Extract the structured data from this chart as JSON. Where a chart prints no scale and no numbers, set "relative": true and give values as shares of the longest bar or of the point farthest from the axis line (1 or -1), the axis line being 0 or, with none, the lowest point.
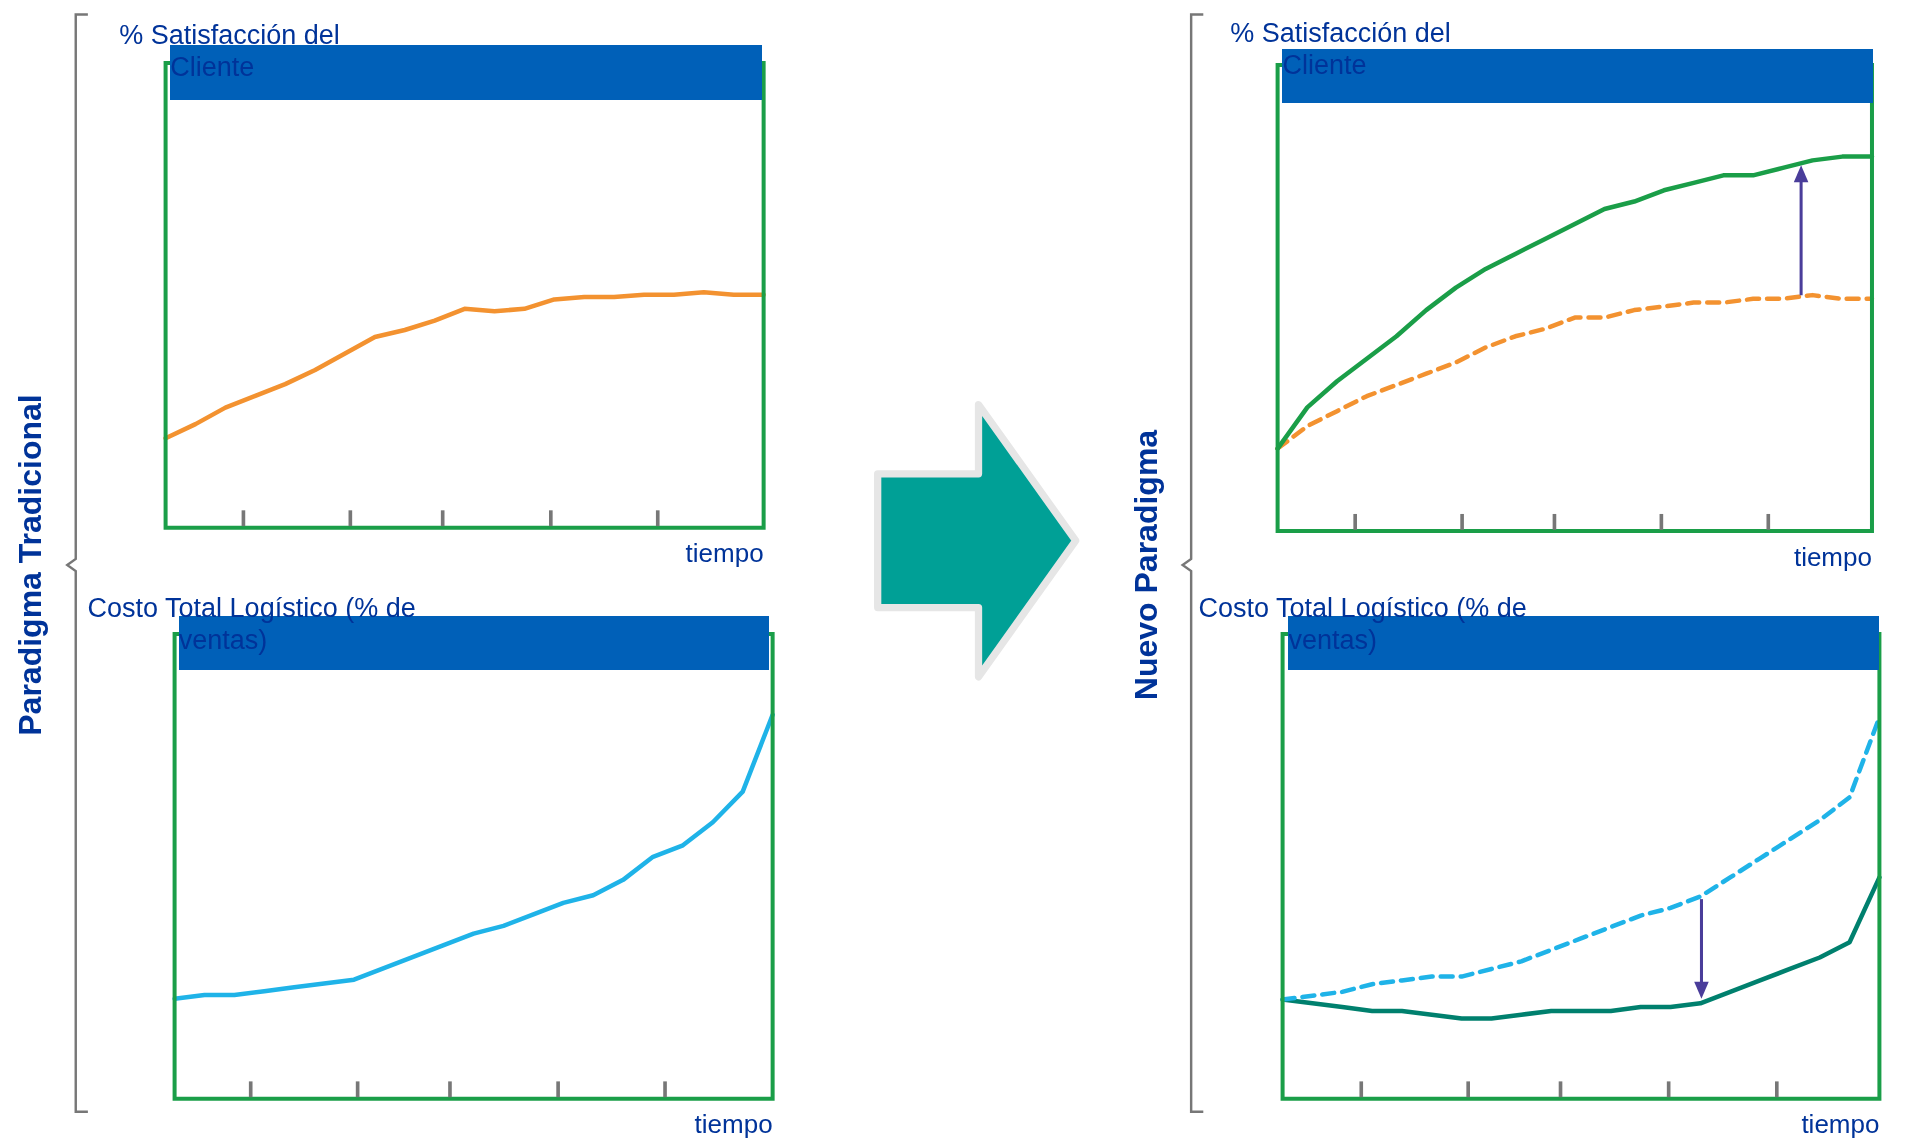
{
  "chart_data": [
    {
      "type": "line",
      "title": "% Satisfacción del Cliente",
      "xlabel": "tiempo",
      "annotations": [
        "Paradigma Tradicional"
      ],
      "relative": true,
      "marker": "none",
      "categories": [
        null,
        null,
        null,
        null,
        null,
        null,
        null,
        null,
        null,
        null,
        null,
        null,
        null,
        null,
        null,
        null,
        null,
        null,
        null,
        null,
        null
      ],
      "series": [
        {
          "color": "#f39230",
          "line_style": "solid",
          "values": [
            0.38,
            0.44,
            0.51,
            0.56,
            0.61,
            0.67,
            0.74,
            0.81,
            0.84,
            0.88,
            0.93,
            0.92,
            0.93,
            0.97,
            0.98,
            0.98,
            0.99,
            0.99,
            1,
            0.99,
            0.99
          ]
        }
      ]
    },
    {
      "type": "line",
      "title": "% Satisfacción del Cliente",
      "xlabel": "tiempo",
      "annotations": [
        "Nuevo Paradigma"
      ],
      "relative": true,
      "marker": "none",
      "categories": [
        null,
        null,
        null,
        null,
        null,
        null,
        null,
        null,
        null,
        null,
        null,
        null,
        null,
        null,
        null,
        null,
        null,
        null,
        null,
        null,
        null
      ],
      "series": [
        {
          "color": "#1a9e48",
          "line_style": "solid",
          "values": [
            0.22,
            0.33,
            0.4,
            0.46,
            0.52,
            0.59,
            0.65,
            0.7,
            0.74,
            0.78,
            0.82,
            0.86,
            0.88,
            0.91,
            0.93,
            0.95,
            0.95,
            0.97,
            0.99,
            1,
            1
          ]
        },
        {
          "color": "#f39230",
          "line_style": "dashed",
          "values": [
            0.22,
            0.28,
            0.32,
            0.36,
            0.39,
            0.42,
            0.45,
            0.49,
            0.52,
            0.54,
            0.57,
            0.57,
            0.59,
            0.6,
            0.61,
            0.61,
            0.62,
            0.62,
            0.63,
            0.62,
            0.62
          ]
        }
      ]
    },
    {
      "type": "line",
      "title": "Costo Total Logístico (% de ventas)",
      "xlabel": "tiempo",
      "relative": true,
      "marker": "none",
      "categories": [
        null,
        null,
        null,
        null,
        null,
        null,
        null,
        null,
        null,
        null,
        null,
        null,
        null,
        null,
        null,
        null,
        null,
        null,
        null,
        null,
        null
      ],
      "series": [
        {
          "color": "#1fb3e8",
          "line_style": "solid",
          "values": [
            0.26,
            0.27,
            0.27,
            0.28,
            0.29,
            0.3,
            0.31,
            0.34,
            0.37,
            0.4,
            0.43,
            0.45,
            0.48,
            0.51,
            0.53,
            0.57,
            0.63,
            0.66,
            0.72,
            0.8,
            1
          ]
        }
      ]
    },
    {
      "type": "line",
      "title": "Costo Total Logístico (% de ventas)",
      "xlabel": "tiempo",
      "relative": true,
      "marker": "none",
      "categories": [
        null,
        null,
        null,
        null,
        null,
        null,
        null,
        null,
        null,
        null,
        null,
        null,
        null,
        null,
        null,
        null,
        null,
        null,
        null,
        null,
        null
      ],
      "series": [
        {
          "color": "#1fb3e8",
          "line_style": "dashed",
          "values": [
            0.26,
            0.27,
            0.28,
            0.3,
            0.31,
            0.32,
            0.32,
            0.34,
            0.36,
            0.39,
            0.42,
            0.45,
            0.48,
            0.5,
            0.53,
            0.58,
            0.63,
            0.68,
            0.73,
            0.79,
            1
          ]
        },
        {
          "color": "#00806e",
          "line_style": "solid",
          "values": [
            0.26,
            0.25,
            0.24,
            0.23,
            0.23,
            0.22,
            0.21,
            0.21,
            0.22,
            0.23,
            0.23,
            0.23,
            0.24,
            0.24,
            0.25,
            0.28,
            0.31,
            0.34,
            0.37,
            0.41,
            0.58
          ]
        }
      ]
    }
  ]
}
